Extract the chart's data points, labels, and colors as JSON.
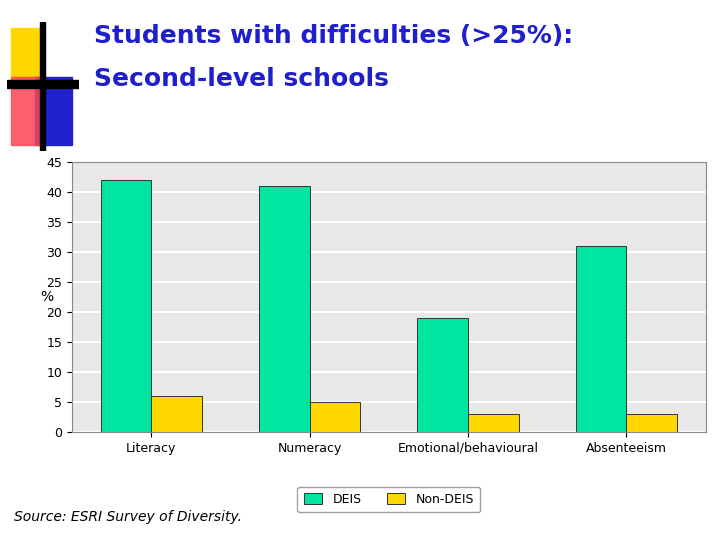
{
  "title_line1": "Students with difficulties (>25%):",
  "title_line2": "Second-level schools",
  "source": "Source: ESRI Survey of Diversity.",
  "categories": [
    "Literacy",
    "Numeracy",
    "Emotional/behavioural",
    "Absenteeism"
  ],
  "deis_values": [
    42,
    41,
    19,
    31
  ],
  "non_deis_values": [
    6,
    5,
    3,
    3
  ],
  "deis_color": "#00E5A0",
  "non_deis_color": "#FFD700",
  "ylabel": "%",
  "ylim": [
    0,
    45
  ],
  "yticks": [
    0,
    5,
    10,
    15,
    20,
    25,
    30,
    35,
    40,
    45
  ],
  "title_color": "#1F1FCC",
  "bar_edge_color": "#333333",
  "bar_width": 0.32,
  "background_color": "#FFFFFF",
  "chart_bg_color": "#E8E8E8",
  "grid_color": "#FFFFFF",
  "title_fontsize": 18,
  "axis_fontsize": 9,
  "source_fontsize": 10,
  "logo_yellow": "#FFD700",
  "logo_blue": "#2222CC",
  "logo_red": "#FF4455",
  "logo_black": "#000000"
}
